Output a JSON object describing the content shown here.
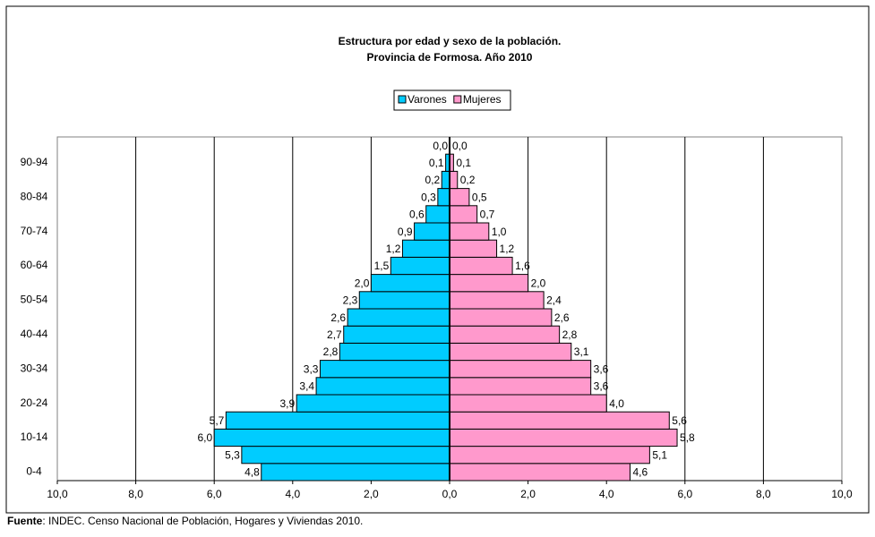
{
  "chart_data": {
    "type": "pyramid",
    "title": "Estructura por edad y sexo de la población.",
    "subtitle": "Provincia de Formosa. Año 2010",
    "categories": [
      "0-4",
      null,
      "10-14",
      null,
      "20-24",
      null,
      "30-34",
      null,
      "40-44",
      null,
      "50-54",
      null,
      "60-64",
      null,
      "70-74",
      null,
      "80-84",
      null,
      "90-94",
      null
    ],
    "series": [
      {
        "name": "Varones",
        "color": "#00ccff",
        "values": [
          -4.8,
          -5.3,
          -6.0,
          -5.7,
          -3.9,
          -3.4,
          -3.3,
          -2.8,
          -2.7,
          -2.6,
          -2.3,
          -2.0,
          -1.5,
          -1.2,
          -0.9,
          -0.6,
          -0.3,
          -0.2,
          -0.1,
          0
        ],
        "value_labels": [
          "4,8",
          "5,3",
          "6,0",
          "5,7",
          "3,9",
          "3,4",
          "3,3",
          "2,8",
          "2,7",
          "2,6",
          "2,3",
          "2,0",
          "1,5",
          "1,2",
          "0,9",
          "0,6",
          "0,3",
          "0,2",
          "0,1",
          "0,0"
        ]
      },
      {
        "name": "Mujeres",
        "color": "#ff99cc",
        "values": [
          4.6,
          5.1,
          5.8,
          5.6,
          4.0,
          3.6,
          3.6,
          3.1,
          2.8,
          2.6,
          2.4,
          2.0,
          1.6,
          1.2,
          1.0,
          0.7,
          0.5,
          0.2,
          0.1,
          0
        ],
        "value_labels": [
          "4,6",
          "5,1",
          "5,8",
          "5,6",
          "4,0",
          "3,6",
          "3,6",
          "3,1",
          "2,8",
          "2,6",
          "2,4",
          "2,0",
          "1,6",
          "1,2",
          "1,0",
          "0,7",
          "0,5",
          "0,2",
          "0,1",
          "0,0"
        ]
      }
    ],
    "xlim": [
      -10,
      10
    ],
    "xticks": [
      {
        "value": -10,
        "label": "10,0"
      },
      {
        "value": -8,
        "label": "8,0"
      },
      {
        "value": -6,
        "label": "6,0"
      },
      {
        "value": -4,
        "label": "4,0"
      },
      {
        "value": -2,
        "label": "2,0"
      },
      {
        "value": 0,
        "label": "0,0"
      },
      {
        "value": 2,
        "label": "2,0"
      },
      {
        "value": 4,
        "label": "4,0"
      },
      {
        "value": 6,
        "label": "6,0"
      },
      {
        "value": 8,
        "label": "8,0"
      },
      {
        "value": 10,
        "label": "10,0"
      }
    ],
    "grid": true,
    "legend": "top",
    "source_label": "Fuente",
    "source": ": INDEC. Censo Nacional de Población, Hogares y Viviendas 2010."
  }
}
